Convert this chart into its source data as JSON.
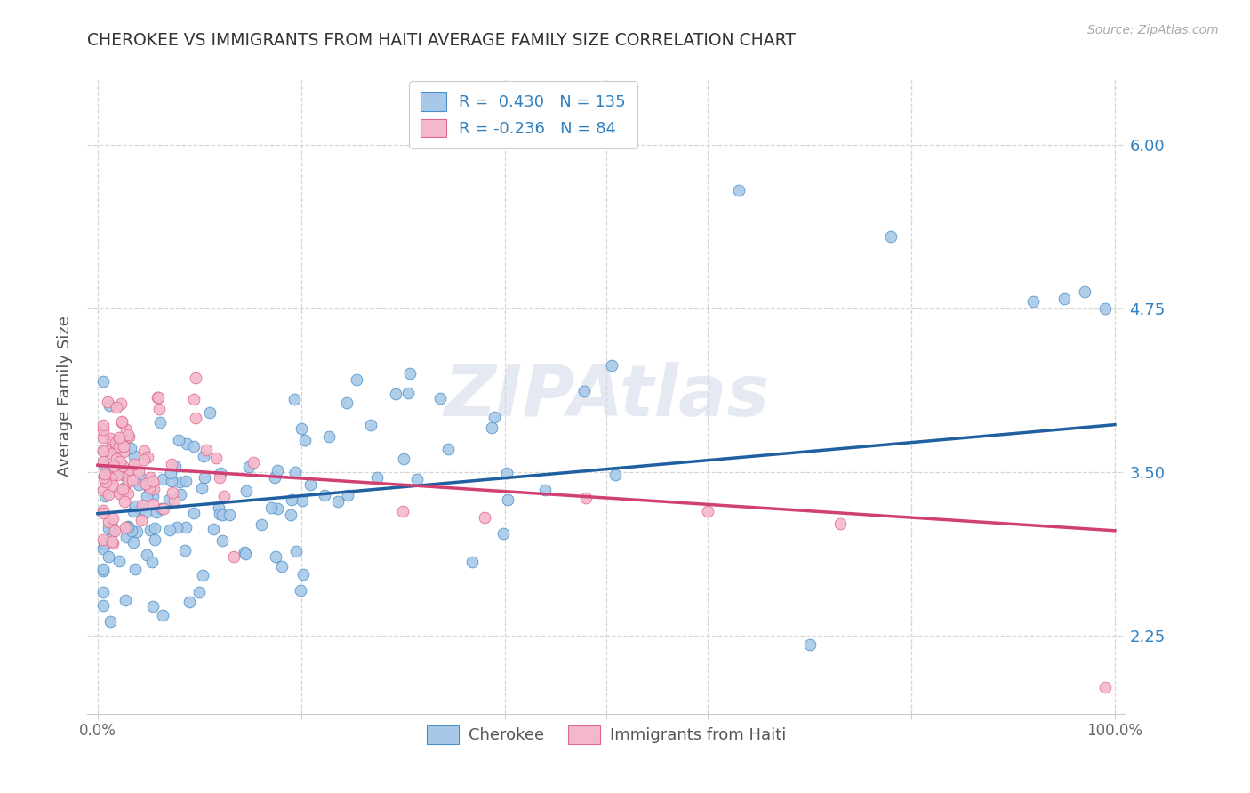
{
  "title": "CHEROKEE VS IMMIGRANTS FROM HAITI AVERAGE FAMILY SIZE CORRELATION CHART",
  "source": "Source: ZipAtlas.com",
  "ylabel": "Average Family Size",
  "ytick_labels": [
    "2.25",
    "3.50",
    "4.75",
    "6.00"
  ],
  "ytick_vals": [
    2.25,
    3.5,
    4.75,
    6.0
  ],
  "ylim": [
    1.65,
    6.5
  ],
  "xlim": [
    0.0,
    1.0
  ],
  "watermark": "ZIPAtlas",
  "legend_label1": "Cherokee",
  "legend_label2": "Immigrants from Haiti",
  "R1": 0.43,
  "N1": 135,
  "R2": -0.236,
  "N2": 84,
  "color_blue_fill": "#a8c8e8",
  "color_blue_edge": "#4a90c8",
  "color_blue_line": "#2060a0",
  "color_pink_fill": "#f4b8cc",
  "color_pink_edge": "#e06888",
  "color_pink_line": "#d04070",
  "color_text_blue": "#3080c0",
  "color_text_ticks": "#3080c0",
  "background": "#ffffff",
  "grid_color": "#cccccc",
  "title_color": "#333333"
}
